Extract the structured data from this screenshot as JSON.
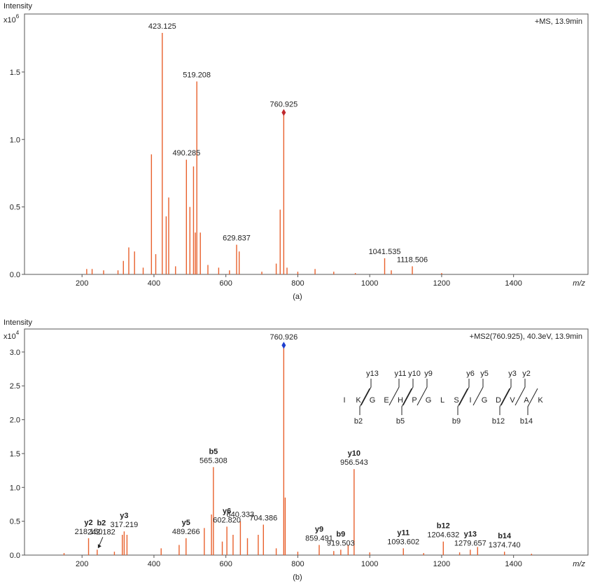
{
  "chart_data": [
    {
      "type": "stem",
      "y_label": "Intensity",
      "scale_base": "x10",
      "scale_exp": "6",
      "subtitle": "+MS, 13.9min",
      "x_label": "m/z",
      "caption": "(a)",
      "color": "#e8602c",
      "xlim": [
        40,
        1607
      ],
      "ylim": [
        0,
        1.93
      ],
      "xticks": [
        200,
        400,
        600,
        800,
        1000,
        1200,
        1400
      ],
      "yticks": [
        {
          "value": 0,
          "label": "0.0"
        },
        {
          "value": 0.5,
          "label": "0.5"
        },
        {
          "value": 1,
          "label": "1.0"
        },
        {
          "value": 1.5,
          "label": "1.5"
        }
      ],
      "x": [
        213,
        228,
        260,
        300,
        315,
        330,
        346,
        370,
        393,
        405,
        423.125,
        434,
        441,
        460,
        490.285,
        500,
        510,
        515,
        519.208,
        529,
        550,
        580,
        610,
        629.837,
        637,
        700,
        740,
        751,
        760.925,
        770,
        800,
        848,
        900,
        960,
        1041.535,
        1060,
        1118.506,
        1200
      ],
      "values": [
        0.04,
        0.04,
        0.03,
        0.03,
        0.1,
        0.2,
        0.17,
        0.05,
        0.89,
        0.15,
        1.79,
        0.43,
        0.57,
        0.06,
        0.85,
        0.5,
        0.8,
        0.31,
        1.43,
        0.31,
        0.07,
        0.05,
        0.03,
        0.22,
        0.17,
        0.02,
        0.08,
        0.48,
        1.2,
        0.05,
        0.02,
        0.04,
        0.02,
        0.01,
        0.12,
        0.03,
        0.06,
        0.01
      ],
      "annotations": [
        {
          "text": "423.125",
          "x": 423.125,
          "y": 1.79
        },
        {
          "text": "519.208",
          "x": 519.208,
          "y": 1.43
        },
        {
          "text": "760.925",
          "x": 760.925,
          "y": 1.2,
          "marker_color": "#c0282d"
        },
        {
          "text": "490.285",
          "x": 490.285,
          "y": 0.85
        },
        {
          "text": "629.837",
          "x": 629.837,
          "y": 0.22
        },
        {
          "text": "1041.535",
          "x": 1041.535,
          "y": 0.12
        },
        {
          "text": "1118.506",
          "x": 1118.506,
          "y": 0.06
        }
      ]
    },
    {
      "type": "stem",
      "y_label": "Intensity",
      "scale_base": "x10",
      "scale_exp": "4",
      "subtitle": "+MS2(760.925), 40.3eV, 13.9min",
      "x_label": "m/z",
      "caption": "(b)",
      "color": "#e8602c",
      "xlim": [
        40,
        1607
      ],
      "ylim": [
        0,
        3.34
      ],
      "xticks": [
        200,
        400,
        600,
        800,
        1000,
        1200,
        1400
      ],
      "yticks": [
        {
          "value": 0,
          "label": "0.0"
        },
        {
          "value": 0.5,
          "label": "0.5"
        },
        {
          "value": 1,
          "label": "1.0"
        },
        {
          "value": 1.5,
          "label": "1.5"
        },
        {
          "value": 2,
          "label": "2.0"
        },
        {
          "value": 2.5,
          "label": "2.5"
        },
        {
          "value": 3,
          "label": "3.0"
        }
      ],
      "x": [
        150,
        218.15,
        242.182,
        290,
        312,
        317.219,
        325,
        420,
        470,
        489.266,
        540,
        560,
        565.308,
        590,
        602.82,
        620,
        640.333,
        660,
        690,
        704.386,
        740,
        760.926,
        765,
        800,
        859.491,
        900,
        919.503,
        940,
        956.543,
        1000,
        1093.602,
        1150,
        1204.632,
        1250,
        1279.657,
        1300,
        1374.74,
        1450
      ],
      "values": [
        0.03,
        0.25,
        0.08,
        0.05,
        0.3,
        0.35,
        0.3,
        0.1,
        0.15,
        0.25,
        0.4,
        0.6,
        1.3,
        0.2,
        0.42,
        0.3,
        0.5,
        0.25,
        0.3,
        0.45,
        0.1,
        3.1,
        0.85,
        0.05,
        0.15,
        0.06,
        0.08,
        0.15,
        1.27,
        0.04,
        0.1,
        0.03,
        0.2,
        0.04,
        0.08,
        0.12,
        0.05,
        0.02
      ],
      "annotations": [
        {
          "ion": "y2",
          "text": "218.150",
          "x": 218.15,
          "y": 0.25
        },
        {
          "ion": "b2",
          "text": "242.182",
          "x": 242.182,
          "y": 0.08
        },
        {
          "ion": "y3",
          "text": "317.219",
          "x": 317.219,
          "y": 0.35
        },
        {
          "ion": "y5",
          "text": "489.266",
          "x": 489.266,
          "y": 0.25
        },
        {
          "ion": "b5",
          "text": "565.308",
          "x": 565.308,
          "y": 1.3
        },
        {
          "ion": "y6",
          "text": "602.820",
          "x": 602.82,
          "y": 0.42
        },
        {
          "text": "640.333",
          "x": 640.333,
          "y": 0.5
        },
        {
          "text": "704.386",
          "x": 704.386,
          "y": 0.45
        },
        {
          "text": "760.926",
          "x": 760.926,
          "y": 3.1,
          "marker_color": "#1f3fcf"
        },
        {
          "ion": "y9",
          "text": "859.491",
          "x": 859.491,
          "y": 0.15
        },
        {
          "ion": "b9",
          "text": "919.503",
          "x": 919.503,
          "y": 0.08
        },
        {
          "ion": "y10",
          "text": "956.543",
          "x": 956.543,
          "y": 1.27
        },
        {
          "ion": "y11",
          "text": "1093.602",
          "x": 1093.602,
          "y": 0.1
        },
        {
          "ion": "b12",
          "text": "1204.632",
          "x": 1204.632,
          "y": 0.2
        },
        {
          "ion": "y13",
          "text": "1279.657",
          "x": 1279.657,
          "y": 0.08
        },
        {
          "ion": "b14",
          "text": "1374.740",
          "x": 1374.74,
          "y": 0.05
        }
      ],
      "sequence": [
        "I",
        "K",
        "G",
        "E",
        "H",
        "P",
        "G",
        "L",
        "S",
        "I",
        "G",
        "D",
        "V",
        "A",
        "K"
      ],
      "y_ions": [
        "y13",
        "y11",
        "y10",
        "y9",
        "y6",
        "y5",
        "y3",
        "y2"
      ],
      "b_ions": [
        "b2",
        "b5",
        "b9",
        "b12",
        "b14"
      ]
    }
  ]
}
